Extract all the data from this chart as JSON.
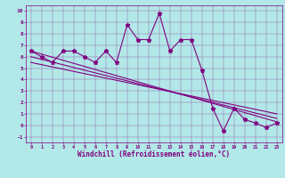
{
  "xlabel": "Windchill (Refroidissement éolien,°C)",
  "bg_color": "#b2e8e8",
  "line_color": "#800080",
  "xlim": [
    -0.5,
    23.5
  ],
  "ylim": [
    -1.5,
    10.5
  ],
  "xticks": [
    0,
    1,
    2,
    3,
    4,
    5,
    6,
    7,
    8,
    9,
    10,
    11,
    12,
    13,
    14,
    15,
    16,
    17,
    18,
    19,
    20,
    21,
    22,
    23
  ],
  "yticks": [
    -1,
    0,
    1,
    2,
    3,
    4,
    5,
    6,
    7,
    8,
    9,
    10
  ],
  "data_x": [
    0,
    1,
    2,
    3,
    4,
    5,
    6,
    7,
    8,
    9,
    10,
    11,
    12,
    13,
    14,
    15,
    16,
    17,
    18,
    19,
    20,
    21,
    22,
    23
  ],
  "data_y": [
    6.5,
    6.0,
    5.5,
    6.5,
    6.5,
    6.0,
    5.5,
    6.5,
    5.5,
    8.8,
    7.5,
    7.5,
    9.8,
    6.5,
    7.5,
    7.5,
    4.8,
    1.5,
    -0.5,
    1.5,
    0.5,
    0.2,
    -0.2,
    0.2
  ],
  "trend1_x": [
    0,
    23
  ],
  "trend1_y": [
    6.5,
    0.3
  ],
  "trend2_x": [
    0,
    23
  ],
  "trend2_y": [
    6.0,
    0.6
  ],
  "trend3_x": [
    0,
    23
  ],
  "trend3_y": [
    5.5,
    1.0
  ]
}
